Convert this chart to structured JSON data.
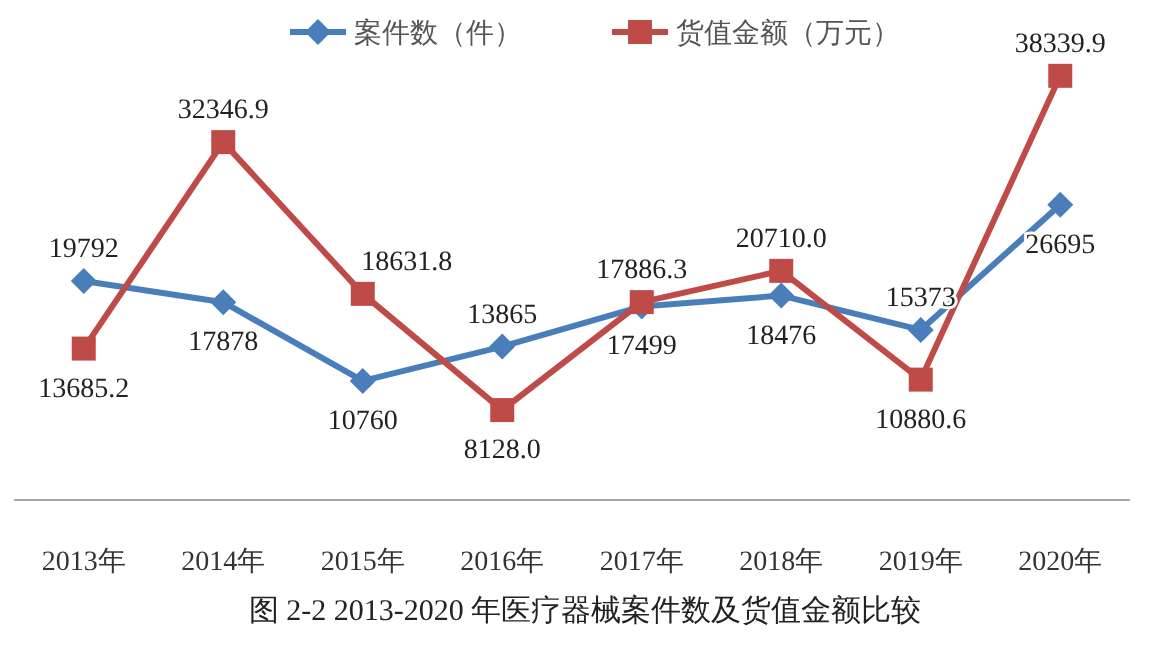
{
  "chart_data": {
    "type": "line",
    "title": "图 2-2   2013-2020 年医疗器械案件数及货值金额比较",
    "categories": [
      "2013年",
      "2014年",
      "2015年",
      "2016年",
      "2017年",
      "2018年",
      "2019年",
      "2020年"
    ],
    "series": [
      {
        "name": "案件数（件）",
        "color": "#4a7ebb",
        "marker": "diamond",
        "values": [
          19792,
          17878,
          10760,
          13865,
          17499,
          18476,
          15373,
          26695
        ],
        "value_labels": [
          "19792",
          "17878",
          "10760",
          "13865",
          "17499",
          "18476",
          "15373",
          "26695"
        ]
      },
      {
        "name": "货值金额（万元）",
        "color": "#be4b48",
        "marker": "square",
        "values": [
          13685.2,
          32346.9,
          18631.8,
          8128.0,
          17886.3,
          20710.0,
          10880.6,
          38339.9
        ],
        "value_labels": [
          "13685.2",
          "32346.9",
          "18631.8",
          "8128.0",
          "17886.3",
          "20710.0",
          "10880.6",
          "38339.9"
        ]
      }
    ],
    "tick_labels": "x",
    "legend": "top",
    "grid": false,
    "line_style": "solid"
  }
}
